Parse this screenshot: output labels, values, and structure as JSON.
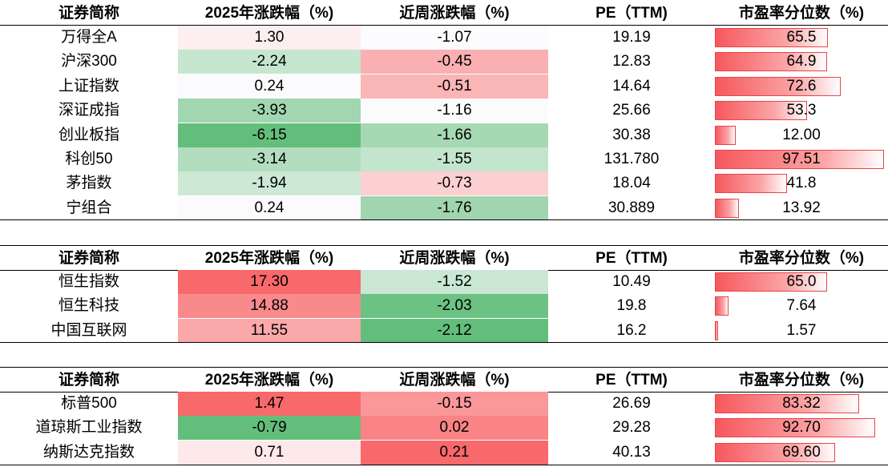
{
  "headers": [
    "证券简称",
    "2025年涨跌幅（%)",
    "近周涨跌幅（%)",
    "PE（TTM)",
    "市盈率分位数（%)"
  ],
  "colors": {
    "red_strong": "#f8696b",
    "green_strong": "#63be7b",
    "bar_red": "#f6585d",
    "white": "#ffffff"
  },
  "sections": [
    {
      "rows": [
        {
          "name": "万得全A",
          "ytd": "1.30",
          "week": "-1.07",
          "pe": "19.19",
          "pct": "65.5",
          "pct_value": 65.5,
          "ytd_bg": "#fdeef0",
          "week_bg": "#fcfcff"
        },
        {
          "name": "沪深300",
          "ytd": "-2.24",
          "week": "-0.45",
          "pe": "12.83",
          "pct": "64.9",
          "pct_value": 64.9,
          "ytd_bg": "#c6e6d0",
          "week_bg": "#fab0b2"
        },
        {
          "name": "上证指数",
          "ytd": "0.24",
          "week": "-0.51",
          "pe": "14.64",
          "pct": "72.6",
          "pct_value": 72.6,
          "ytd_bg": "#fbfbfe",
          "week_bg": "#fab5b7"
        },
        {
          "name": "深证成指",
          "ytd": "-3.93",
          "week": "-1.16",
          "pe": "25.66",
          "pct": "53.3",
          "pct_value": 53.3,
          "ytd_bg": "#a1d6b0",
          "week_bg": "#fafcfb"
        },
        {
          "name": "创业板指",
          "ytd": "-6.15",
          "week": "-1.66",
          "pe": "30.38",
          "pct": "12.00",
          "pct_value": 12.0,
          "ytd_bg": "#63be7b",
          "week_bg": "#a6d8b4"
        },
        {
          "name": "科创50",
          "ytd": "-3.14",
          "week": "-1.55",
          "pe": "131.780",
          "pct": "97.51",
          "pct_value": 97.51,
          "ytd_bg": "#b3ddbf",
          "week_bg": "#c3e4cd"
        },
        {
          "name": "茅指数",
          "ytd": "-1.94",
          "week": "-0.73",
          "pe": "18.04",
          "pct": "41.8",
          "pct_value": 41.8,
          "ytd_bg": "#cde9d6",
          "week_bg": "#fccfd1"
        },
        {
          "name": "宁组合",
          "ytd": "0.24",
          "week": "-1.76",
          "pe": "30.889",
          "pct": "13.92",
          "pct_value": 13.92,
          "ytd_bg": "#fbfbfe",
          "week_bg": "#a0d5af"
        }
      ]
    },
    {
      "rows": [
        {
          "name": "恒生指数",
          "ytd": "17.30",
          "week": "-1.52",
          "pe": "10.49",
          "pct": "65.0",
          "pct_value": 65.0,
          "ytd_bg": "#f8696b",
          "week_bg": "#c9e7d3"
        },
        {
          "name": "恒生科技",
          "ytd": "14.88",
          "week": "-2.03",
          "pe": "19.8",
          "pct": "7.64",
          "pct_value": 7.64,
          "ytd_bg": "#f98a8c",
          "week_bg": "#6cc283"
        },
        {
          "name": "中国互联网",
          "ytd": "11.55",
          "week": "-2.12",
          "pe": "16.2",
          "pct": "1.57",
          "pct_value": 1.57,
          "ytd_bg": "#fba8aa",
          "week_bg": "#63be7b"
        }
      ]
    },
    {
      "rows": [
        {
          "name": "标普500",
          "ytd": "1.47",
          "week": "-0.15",
          "pe": "26.69",
          "pct": "83.32",
          "pct_value": 83.32,
          "ytd_bg": "#f8696b",
          "week_bg": "#fa9799"
        },
        {
          "name": "道琼斯工业指数",
          "ytd": "-0.79",
          "week": "0.02",
          "pe": "29.28",
          "pct": "92.70",
          "pct_value": 92.7,
          "ytd_bg": "#63be7b",
          "week_bg": "#f98385"
        },
        {
          "name": "纳斯达克指数",
          "ytd": "0.71",
          "week": "0.21",
          "pe": "40.13",
          "pct": "69.60",
          "pct_value": 69.6,
          "ytd_bg": "#fde8ea",
          "week_bg": "#f8696b"
        }
      ]
    }
  ]
}
